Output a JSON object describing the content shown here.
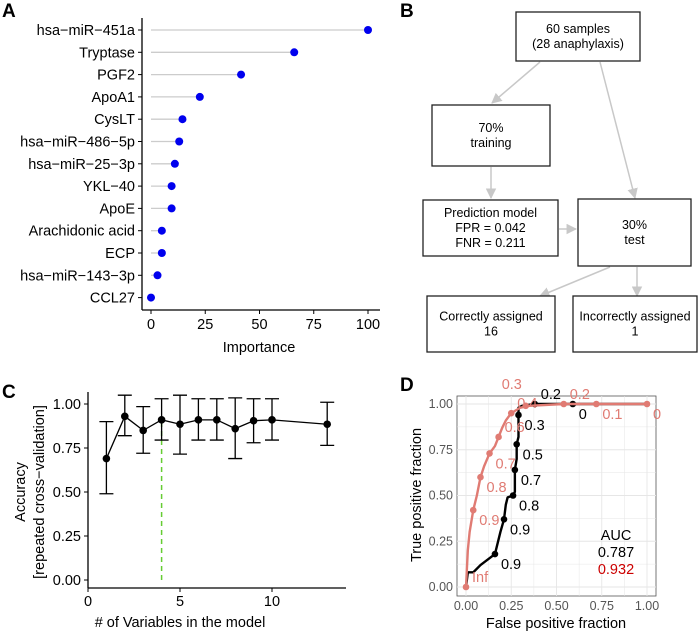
{
  "panels": {
    "a": "A",
    "b": "B",
    "c": "C",
    "d": "D"
  },
  "chart_data": [
    {
      "type": "lollipop",
      "xlabel": "Importance",
      "xlim": [
        0,
        100
      ],
      "xticks": [
        "0",
        "25",
        "50",
        "75",
        "100"
      ],
      "categories": [
        "hsa−miR−451a",
        "Tryptase",
        "PGF2",
        "ApoA1",
        "CysLT",
        "hsa−miR−486−5p",
        "hsa−miR−25−3p",
        "YKL−40",
        "ApoE",
        "Arachidonic acid",
        "ECP",
        "hsa−miR−143−3p",
        "CCL27"
      ],
      "values": [
        100,
        66,
        41.5,
        22.5,
        14.5,
        13,
        11,
        9.5,
        9.5,
        5,
        5,
        3,
        0
      ],
      "point_color": "#0000ee",
      "stem_color": "#cccccc"
    },
    {
      "type": "flowchart",
      "nodes": {
        "samples": [
          "60 samples",
          "(28 anaphylaxis)"
        ],
        "training": [
          "70%",
          "training"
        ],
        "model": [
          "Prediction model",
          "FPR = 0.042",
          "FNR = 0.211"
        ],
        "test": [
          "30%",
          "test"
        ],
        "correct": [
          "Correctly assigned",
          "16"
        ],
        "incorrect": [
          "Incorrectly assigned",
          "1"
        ]
      }
    },
    {
      "type": "line",
      "xlabel": "# of Variables in the model",
      "ylabel": [
        "Accuracy",
        "[repeated cross−validation]"
      ],
      "xlim": [
        0,
        14
      ],
      "ylim": [
        0,
        1
      ],
      "xticks": [
        "0",
        "5",
        "10"
      ],
      "yticks": [
        "0.00",
        "0.25",
        "0.50",
        "0.75",
        "1.00"
      ],
      "x": [
        1,
        2,
        3,
        4,
        5,
        6,
        7,
        8,
        9,
        10,
        13
      ],
      "y": [
        0.69,
        0.93,
        0.85,
        0.91,
        0.885,
        0.91,
        0.91,
        0.86,
        0.905,
        0.91,
        0.885
      ],
      "err_low": [
        0.49,
        0.82,
        0.72,
        0.795,
        0.715,
        0.795,
        0.795,
        0.69,
        0.78,
        0.795,
        0.765
      ],
      "err_high": [
        0.9,
        1.05,
        0.985,
        1.03,
        1.05,
        1.03,
        1.03,
        1.035,
        1.03,
        1.03,
        1.01
      ],
      "vline_x": 4,
      "vline_color": "#66cc33"
    },
    {
      "type": "roc",
      "xlabel": "False positive fraction",
      "ylabel": "True positive fraction",
      "xlim": [
        0,
        1
      ],
      "ylim": [
        0,
        1
      ],
      "ticks": [
        "0.00",
        "0.25",
        "0.50",
        "0.75",
        "1.00"
      ],
      "grid": true,
      "series": [
        {
          "color": "#000000",
          "curve": [
            [
              0,
              0
            ],
            [
              0.01,
              0.08
            ],
            [
              0.04,
              0.08
            ],
            [
              0.08,
              0.12
            ],
            [
              0.12,
              0.15
            ],
            [
              0.16,
              0.18
            ],
            [
              0.19,
              0.3
            ],
            [
              0.21,
              0.37
            ],
            [
              0.22,
              0.45
            ],
            [
              0.23,
              0.49
            ],
            [
              0.26,
              0.5
            ],
            [
              0.27,
              0.52
            ],
            [
              0.27,
              0.64
            ],
            [
              0.28,
              0.7
            ],
            [
              0.28,
              0.78
            ],
            [
              0.29,
              0.82
            ],
            [
              0.29,
              0.94
            ],
            [
              0.29,
              0.98
            ],
            [
              0.31,
              0.99
            ],
            [
              0.38,
              1
            ],
            [
              0.59,
              1
            ],
            [
              1,
              1
            ]
          ],
          "cutoffs": [
            [
              0.16,
              0.18,
              "0.9"
            ],
            [
              0.21,
              0.37,
              "0.9"
            ],
            [
              0.26,
              0.5,
              "0.8"
            ],
            [
              0.27,
              0.64,
              "0.7"
            ],
            [
              0.28,
              0.78,
              "0.5"
            ],
            [
              0.29,
              0.94,
              "0.3"
            ],
            [
              0.38,
              1,
              "0.2"
            ],
            [
              0.59,
              1,
              "0"
            ]
          ]
        },
        {
          "color": "#e07b73",
          "curve": [
            [
              0,
              0
            ],
            [
              0.01,
              0.2
            ],
            [
              0.02,
              0.3
            ],
            [
              0.04,
              0.42
            ],
            [
              0.06,
              0.5
            ],
            [
              0.08,
              0.6
            ],
            [
              0.1,
              0.66
            ],
            [
              0.13,
              0.73
            ],
            [
              0.16,
              0.77
            ],
            [
              0.18,
              0.82
            ],
            [
              0.2,
              0.87
            ],
            [
              0.22,
              0.91
            ],
            [
              0.25,
              0.95
            ],
            [
              0.3,
              0.98
            ],
            [
              0.35,
              0.99
            ],
            [
              0.54,
              1
            ],
            [
              0.72,
              1
            ],
            [
              1,
              1
            ]
          ],
          "cutoffs": [
            [
              0,
              0,
              "Inf"
            ],
            [
              0.04,
              0.42,
              "0.9"
            ],
            [
              0.08,
              0.6,
              "0.8"
            ],
            [
              0.13,
              0.73,
              "0.7"
            ],
            [
              0.18,
              0.82,
              "0.6"
            ],
            [
              0.25,
              0.95,
              "0.4"
            ],
            [
              0.33,
              0.99,
              "0.3"
            ],
            [
              0.54,
              1,
              "0.2"
            ],
            [
              0.72,
              1,
              "0.1"
            ],
            [
              1,
              1,
              "0"
            ]
          ]
        }
      ],
      "auc": {
        "title": "AUC",
        "values": [
          "0.787",
          "0.932"
        ],
        "colors": [
          "#000000",
          "#cc0000"
        ]
      }
    }
  ]
}
